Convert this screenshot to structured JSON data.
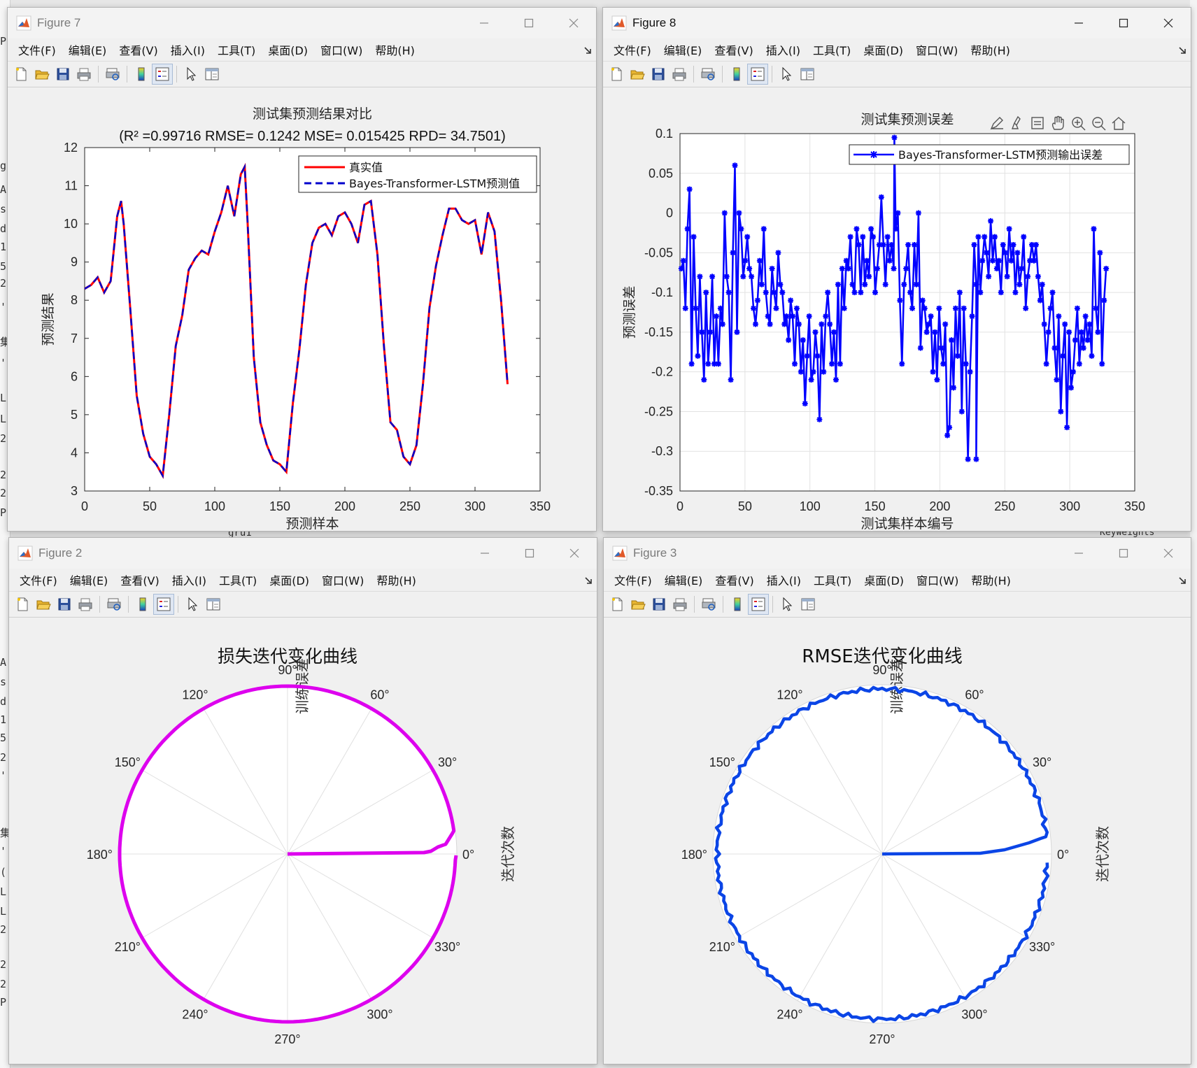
{
  "menu": [
    "文件(F)",
    "编辑(E)",
    "查看(V)",
    "插入(I)",
    "工具(T)",
    "桌面(D)",
    "窗口(W)",
    "帮助(H)"
  ],
  "toolbar_icons": [
    "new-file-icon",
    "open-folder-icon",
    "save-icon",
    "print-icon",
    "print-preview-icon",
    "colorbar-icon",
    "legend-icon",
    "pointer-icon",
    "property-editor-icon"
  ],
  "fig7": {
    "title": "Figure 7",
    "chart_data": {
      "type": "line",
      "title": "测试集预测结果对比",
      "subtitle": "(R² =0.99716 RMSE= 0.1242 MSE= 0.015425 RPD= 34.7501)",
      "xlabel": "预测样本",
      "ylabel": "预测结果",
      "xlim": [
        0,
        350
      ],
      "ylim": [
        3,
        12
      ],
      "xticks": [
        "0",
        "50",
        "100",
        "150",
        "200",
        "250",
        "300",
        "350"
      ],
      "yticks": [
        "3",
        "4",
        "5",
        "6",
        "7",
        "8",
        "9",
        "10",
        "11",
        "12"
      ],
      "legend_position": "top-right",
      "series": [
        {
          "name": "真实值",
          "color": "#ff0000",
          "style": "solid"
        },
        {
          "name": "Bayes-Transformer-LSTM预测值",
          "color": "#0000cc",
          "style": "dashed"
        }
      ],
      "x": [
        0,
        5,
        10,
        15,
        20,
        25,
        28,
        30,
        35,
        40,
        45,
        50,
        55,
        60,
        65,
        70,
        75,
        80,
        85,
        90,
        95,
        100,
        105,
        110,
        115,
        120,
        123,
        125,
        130,
        135,
        140,
        145,
        150,
        155,
        160,
        165,
        170,
        175,
        180,
        185,
        190,
        195,
        200,
        205,
        210,
        215,
        220,
        225,
        230,
        235,
        240,
        245,
        250,
        255,
        260,
        265,
        270,
        275,
        280,
        285,
        290,
        295,
        300,
        305,
        310,
        315,
        320,
        325
      ],
      "values": [
        8.3,
        8.4,
        8.6,
        8.2,
        8.5,
        10.2,
        10.6,
        10,
        7.8,
        5.5,
        4.5,
        3.9,
        3.7,
        3.4,
        5,
        6.8,
        7.6,
        8.8,
        9.1,
        9.3,
        9.2,
        9.8,
        10.3,
        11,
        10.2,
        11.3,
        11.5,
        10.2,
        6.5,
        4.8,
        4.2,
        3.8,
        3.7,
        3.5,
        5.3,
        6.7,
        8.4,
        9.5,
        9.9,
        10,
        9.7,
        10.2,
        10.3,
        10,
        9.5,
        10.5,
        10.6,
        9.2,
        6.8,
        4.8,
        4.6,
        3.9,
        3.7,
        4.2,
        5.8,
        7.8,
        8.9,
        9.7,
        10.4,
        10.4,
        10.1,
        10,
        10.1,
        9.2,
        10.3,
        9.8,
        8,
        5.8
      ]
    }
  },
  "fig8": {
    "title": "Figure 8",
    "chart_data": {
      "type": "line",
      "title": "测试集预测误差",
      "xlabel": "测试集样本编号",
      "ylabel": "预测误差",
      "xlim": [
        0,
        350
      ],
      "ylim": [
        -0.35,
        0.1
      ],
      "xticks": [
        "0",
        "50",
        "100",
        "150",
        "200",
        "250",
        "300",
        "350"
      ],
      "yticks": [
        "0.1",
        "0.05",
        "0",
        "-0.05",
        "-0.1",
        "-0.15",
        "-0.2",
        "-0.25",
        "-0.3",
        "-0.35"
      ],
      "legend_position": "top-right",
      "series": [
        {
          "name": "Bayes-Transformer-LSTM预测输出误差",
          "color": "#0000ff",
          "marker": "asterisk"
        }
      ],
      "x_start": 1,
      "values": [
        -0.07,
        -0.06,
        -0.12,
        -0.02,
        0.03,
        -0.19,
        -0.03,
        -0.12,
        -0.18,
        -0.08,
        -0.15,
        -0.21,
        -0.1,
        -0.19,
        -0.15,
        -0.08,
        -0.19,
        -0.13,
        -0.19,
        -0.12,
        -0.14,
        0,
        -0.08,
        -0.1,
        -0.21,
        -0.05,
        0.06,
        -0.15,
        0,
        -0.02,
        -0.08,
        -0.06,
        -0.03,
        -0.07,
        -0.08,
        -0.12,
        -0.14,
        -0.11,
        -0.06,
        -0.09,
        -0.02,
        -0.1,
        -0.13,
        -0.14,
        -0.07,
        -0.1,
        -0.12,
        -0.05,
        -0.09,
        -0.1,
        -0.14,
        -0.13,
        -0.16,
        -0.11,
        -0.13,
        -0.19,
        -0.12,
        -0.14,
        -0.2,
        -0.16,
        -0.24,
        -0.18,
        -0.13,
        -0.21,
        -0.2,
        -0.15,
        -0.18,
        -0.26,
        -0.14,
        -0.2,
        -0.13,
        -0.1,
        -0.14,
        -0.19,
        -0.15,
        -0.21,
        -0.09,
        -0.19,
        -0.07,
        -0.12,
        -0.06,
        -0.07,
        -0.03,
        -0.09,
        -0.1,
        -0.02,
        -0.04,
        -0.1,
        -0.03,
        -0.09,
        -0.06,
        -0.08,
        -0.02,
        -0.03,
        -0.1,
        -0.07,
        -0.04,
        0.02,
        -0.04,
        -0.09,
        -0.03,
        -0.06,
        -0.04,
        -0.07,
        -0.02,
        0,
        -0.11,
        -0.19,
        -0.09,
        -0.07,
        -0.04,
        -0.1,
        -0.12,
        -0.04,
        -0.09,
        0,
        -0.17,
        -0.11,
        -0.12,
        -0.15,
        -0.14,
        -0.13,
        -0.2,
        -0.15,
        -0.21,
        -0.12,
        -0.17,
        -0.19,
        -0.14,
        -0.28,
        -0.27,
        -0.16,
        -0.22,
        -0.12,
        -0.18,
        -0.1,
        -0.25,
        -0.12,
        -0.19,
        -0.31,
        -0.2,
        -0.13,
        -0.04,
        -0.09,
        -0.03,
        -0.1,
        -0.06,
        -0.03,
        -0.05,
        -0.08,
        -0.01,
        -0.06,
        -0.03,
        -0.07,
        -0.06,
        -0.1,
        -0.04,
        -0.05,
        -0.08,
        -0.02,
        -0.06,
        -0.04,
        -0.1,
        -0.05,
        -0.09,
        -0.07,
        -0.03,
        -0.12,
        -0.08,
        -0.06,
        -0.04,
        -0.06,
        -0.04,
        -0.08,
        -0.11,
        -0.09,
        -0.14,
        -0.19,
        -0.15,
        -0.12,
        -0.1,
        -0.17,
        -0.21,
        -0.13,
        -0.25,
        -0.18,
        -0.14,
        -0.27,
        -0.15,
        -0.22,
        -0.2,
        -0.16,
        -0.12,
        -0.19,
        -0.15,
        -0.17,
        -0.13,
        -0.16,
        -0.14,
        -0.18,
        -0.02,
        -0.12,
        -0.15,
        -0.05,
        -0.19,
        -0.11,
        -0.07
      ],
      "extremes": [
        {
          "x": 165,
          "y": 0.095
        },
        {
          "x": 228,
          "y": -0.31
        }
      ]
    }
  },
  "fig2": {
    "title": "Figure 2",
    "chart_data": {
      "type": "polar",
      "title": "损失迭代变化曲线",
      "radial_label": "训练误差",
      "angular_label": "迭代次数",
      "theta_ticks": [
        "0°",
        "30°",
        "60°",
        "90°",
        "120°",
        "150°",
        "180°",
        "210°",
        "240°",
        "270°",
        "300°",
        "330°"
      ],
      "color": "#dd00ee",
      "shape": "spiral from center outward along 0° to near full radius, then full circle at constant radius"
    }
  },
  "fig3": {
    "title": "Figure 3",
    "chart_data": {
      "type": "polar",
      "title": "RMSE迭代变化曲线",
      "radial_label": "训练误差",
      "angular_label": "迭代次数",
      "theta_ticks": [
        "0°",
        "30°",
        "60°",
        "90°",
        "120°",
        "150°",
        "180°",
        "210°",
        "240°",
        "270°",
        "300°",
        "330°"
      ],
      "color": "#0b45e6",
      "shape": "line from center along ~0° then near-constant jittered radius around full circle"
    }
  },
  "bg_code_chars": [
    "P",
    "g",
    "A",
    "s",
    "d",
    "1",
    "5",
    "2",
    "'",
    "集",
    "'",
    "L",
    "L",
    "2",
    "2",
    "2",
    "P",
    "A",
    "s",
    "d",
    "1",
    "5",
    "2",
    "'",
    "集",
    "'",
    "(",
    "L",
    "L",
    "2",
    "2",
    "2",
    "P"
  ],
  "bg_labels": {
    "gru": "gru1",
    "keyweights": "KeyWeights"
  }
}
